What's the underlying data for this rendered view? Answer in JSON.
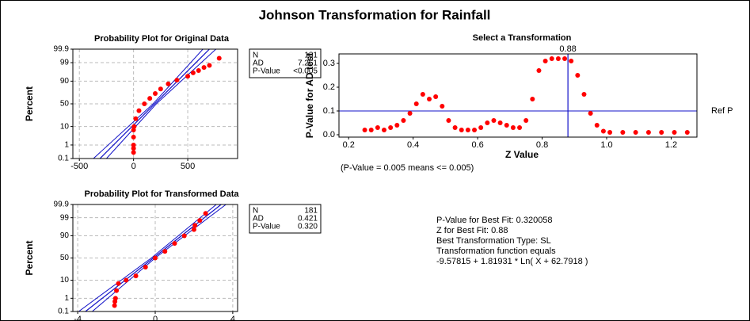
{
  "title": "Johnson Transformation for Rainfall",
  "chart_data": [
    {
      "type": "probability",
      "title": "Probability Plot for Original Data",
      "ylabel": "Percent",
      "x": [
        0,
        0,
        0,
        0,
        0,
        5,
        20,
        50,
        100,
        150,
        200,
        250,
        320,
        400,
        500,
        550,
        600,
        650,
        700,
        790
      ],
      "values": [
        0.3,
        0.6,
        1,
        3,
        7,
        10,
        20,
        35,
        50,
        62,
        72,
        80,
        87,
        91,
        94,
        96,
        97,
        98,
        98.5,
        99.5
      ],
      "color": "#ff0000",
      "xlim": [
        -560,
        960
      ],
      "xticks": [
        -500,
        0,
        500
      ],
      "ylim": [
        0.1,
        99.9
      ],
      "yticks": [
        0.1,
        1,
        10,
        50,
        90,
        99,
        99.9
      ],
      "yscale": "probability",
      "grid": true,
      "fit": {
        "x": [
          -310,
          700
        ],
        "y": [
          0.1,
          99.9
        ]
      },
      "bands": [
        {
          "x": [
            -370,
            180,
            640
          ],
          "y": [
            0.1,
            50,
            99.9
          ]
        },
        {
          "x": [
            -250,
            210,
            760
          ],
          "y": [
            0.1,
            50,
            99.9
          ]
        }
      ],
      "fit_color": "#1010c8",
      "stats": [
        [
          "N",
          "181"
        ],
        [
          "AD",
          "7.261"
        ],
        [
          "P-Value",
          "<0.005"
        ]
      ]
    },
    {
      "type": "probability",
      "title": "Probability Plot for Transformed Data",
      "ylabel": "Percent",
      "x": [
        -2.1,
        -2.08,
        -2.05,
        -2,
        -1.9,
        -1.5,
        -1,
        -0.5,
        0,
        0.5,
        1,
        1.5,
        2,
        2.05,
        2.3,
        2.6
      ],
      "values": [
        0.3,
        0.6,
        1,
        3,
        7,
        10,
        15,
        30,
        50,
        65,
        80,
        90,
        95,
        97,
        98.5,
        99.5
      ],
      "color": "#ff0000",
      "xlim": [
        -4.25,
        4.25
      ],
      "xticks": [
        -4,
        0,
        4
      ],
      "ylim": [
        0.1,
        99.9
      ],
      "yticks": [
        0.1,
        1,
        10,
        50,
        90,
        99,
        99.9
      ],
      "yscale": "probability",
      "grid": true,
      "fit": {
        "x": [
          -3.6,
          3.4
        ],
        "y": [
          0.1,
          99.9
        ]
      },
      "bands": [
        {
          "x": [
            -3.95,
            -0.2,
            3.15
          ],
          "y": [
            0.1,
            50,
            99.9
          ]
        },
        {
          "x": [
            -3.25,
            0,
            3.65
          ],
          "y": [
            0.1,
            50,
            99.9
          ]
        }
      ],
      "fit_color": "#1010c8",
      "stats": [
        [
          "N",
          "181"
        ],
        [
          "AD",
          "0.421"
        ],
        [
          "P-Value",
          "0.320"
        ]
      ]
    },
    {
      "type": "scatter",
      "title": "Select a Transformation",
      "xlabel": "Z Value",
      "ylabel": "P-Value for AD test",
      "x": [
        0.25,
        0.27,
        0.29,
        0.31,
        0.33,
        0.35,
        0.37,
        0.39,
        0.41,
        0.43,
        0.45,
        0.47,
        0.49,
        0.51,
        0.53,
        0.55,
        0.57,
        0.59,
        0.61,
        0.63,
        0.65,
        0.67,
        0.69,
        0.71,
        0.73,
        0.75,
        0.77,
        0.79,
        0.81,
        0.83,
        0.85,
        0.87,
        0.89,
        0.91,
        0.93,
        0.95,
        0.97,
        0.99,
        1.01,
        1.05,
        1.09,
        1.13,
        1.17,
        1.21,
        1.25
      ],
      "values": [
        0.02,
        0.02,
        0.03,
        0.02,
        0.03,
        0.04,
        0.06,
        0.09,
        0.13,
        0.17,
        0.15,
        0.16,
        0.12,
        0.06,
        0.03,
        0.02,
        0.02,
        0.02,
        0.03,
        0.05,
        0.06,
        0.05,
        0.04,
        0.03,
        0.03,
        0.06,
        0.15,
        0.27,
        0.31,
        0.32,
        0.32,
        0.32,
        0.31,
        0.25,
        0.17,
        0.09,
        0.04,
        0.015,
        0.01,
        0.01,
        0.01,
        0.01,
        0.01,
        0.01,
        0.01
      ],
      "color": "#ff0000",
      "xlim": [
        0.17,
        1.28
      ],
      "xticks": [
        0.2,
        0.4,
        0.6,
        0.8,
        {
          "value": 1,
          "label": "1.0"
        },
        1.2
      ],
      "ylim": [
        -0.01,
        0.34
      ],
      "yticks": [
        {
          "value": 0,
          "label": "0.0"
        },
        0.1,
        0.2,
        0.3
      ],
      "ref_value": 0.1,
      "ref_label": "Ref P",
      "selected": 0.88,
      "line_color": "#1010c8",
      "note": "(P-Value = 0.005 means <= 0.005)"
    }
  ],
  "summary": [
    "P-Value for Best Fit: 0.320058",
    "Z for Best Fit: 0.88",
    "Best Transformation Type: SL",
    "Transformation function equals",
    "-9.57815 + 1.81931 * Ln( X + 62.7918 )"
  ]
}
